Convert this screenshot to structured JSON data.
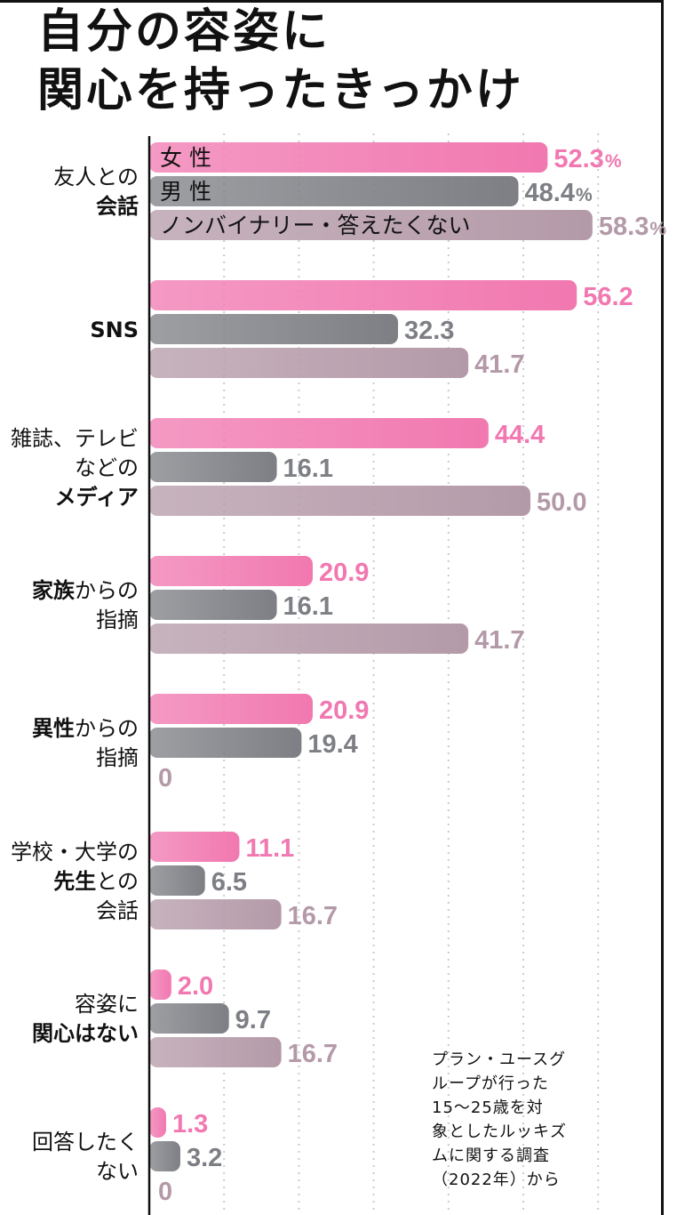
{
  "title_line1": "自分の容姿に",
  "title_line2": "関心を持ったきっかけ",
  "percent_sign": "%",
  "note_lines": [
    "プラン・ユースグ",
    "ループが行った",
    "15～25歳を対",
    "象としたルッキズ",
    "ムに関する調査",
    "（2022年）から"
  ],
  "colors": {
    "female": "#f178b0",
    "male": "#7d7f84",
    "nonbinary": "#b49aa8",
    "grid": "#cccccc",
    "axis": "#111111"
  },
  "chart_data": {
    "type": "bar",
    "orientation": "horizontal",
    "unit": "%",
    "xlim": [
      0,
      60
    ],
    "grid": true,
    "legend": "inside-first-group",
    "categories": [
      {
        "label": [
          {
            "t": "友人との",
            "b": false
          }
        ],
        "label2": [
          {
            "t": "会話",
            "b": true
          }
        ]
      },
      {
        "label": [
          {
            "t": "SNS",
            "b": true
          }
        ]
      },
      {
        "label": [
          {
            "t": "雑誌、テレビ",
            "b": false
          }
        ],
        "label2": [
          {
            "t": "などの",
            "b": false
          }
        ],
        "label3": [
          {
            "t": "メディア",
            "b": true
          }
        ]
      },
      {
        "label": [
          {
            "t": "家族",
            "b": true
          },
          {
            "t": "からの",
            "b": false
          }
        ],
        "label2": [
          {
            "t": "指摘",
            "b": false
          }
        ]
      },
      {
        "label": [
          {
            "t": "異性",
            "b": true
          },
          {
            "t": "からの",
            "b": false
          }
        ],
        "label2": [
          {
            "t": "指摘",
            "b": false
          }
        ]
      },
      {
        "label": [
          {
            "t": "学校・大学の",
            "b": false
          }
        ],
        "label2": [
          {
            "t": "先生",
            "b": true
          },
          {
            "t": "との",
            "b": false
          }
        ],
        "label3": [
          {
            "t": "会話",
            "b": false
          }
        ]
      },
      {
        "label": [
          {
            "t": "容姿に",
            "b": false
          }
        ],
        "label2": [
          {
            "t": "関心はない",
            "b": true
          }
        ]
      },
      {
        "label": [
          {
            "t": "回答したく",
            "b": false
          }
        ],
        "label2": [
          {
            "t": "ない",
            "b": false
          }
        ]
      }
    ],
    "series": [
      {
        "name": "女 性",
        "key": "female",
        "values": [
          52.3,
          56.2,
          44.4,
          20.9,
          20.9,
          11.1,
          2.0,
          1.3
        ],
        "value_labels": [
          "52.3",
          "56.2",
          "44.4",
          "20.9",
          "20.9",
          "11.1",
          "2.0",
          "1.3"
        ]
      },
      {
        "name": "男 性",
        "key": "male",
        "values": [
          48.4,
          32.3,
          16.1,
          16.1,
          19.4,
          6.5,
          9.7,
          3.2
        ],
        "value_labels": [
          "48.4",
          "32.3",
          "16.1",
          "16.1",
          "19.4",
          "6.5",
          "9.7",
          "3.2"
        ]
      },
      {
        "name": "ノンバイナリー・答えたくない",
        "key": "nonbinary",
        "values": [
          58.3,
          41.7,
          50.0,
          41.7,
          0,
          16.7,
          16.7,
          0
        ],
        "value_labels": [
          "58.3",
          "41.7",
          "50.0",
          "41.7",
          "0",
          "16.7",
          "16.7",
          "0"
        ]
      }
    ]
  }
}
